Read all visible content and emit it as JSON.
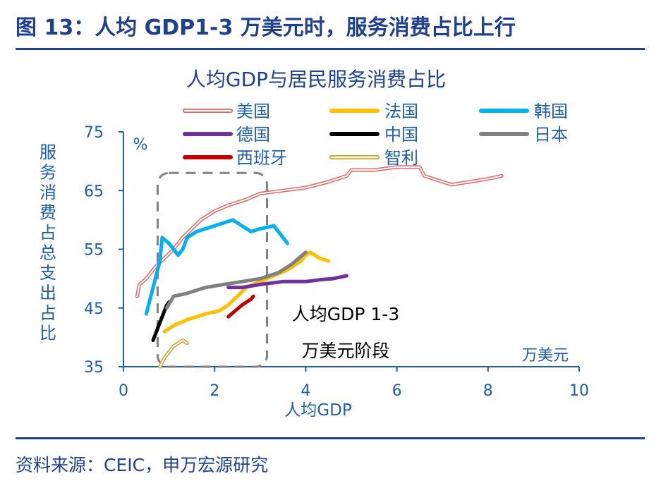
{
  "figure_title": "图 13：人均 GDP1-3 万美元时，服务消费占比上行",
  "source": "资料来源：CEIC，申万宏源研究",
  "colors": {
    "brand_blue": "#1f3f8f",
    "axis_text": "#1f5fa8"
  },
  "chart_data": {
    "type": "line",
    "title": "人均GDP与居民服务消费占比",
    "xlabel": "人均GDP",
    "ylabel": "服务消费占总支出占比",
    "x_unit": "万美元",
    "y_unit": "%",
    "xlim": [
      0,
      10
    ],
    "ylim": [
      35,
      75
    ],
    "xticks": [
      0,
      2,
      4,
      6,
      8,
      10
    ],
    "yticks": [
      35,
      45,
      55,
      65,
      75
    ],
    "grid": false,
    "legend_position": "top",
    "annotation": {
      "box_x": [
        0.75,
        3.15
      ],
      "box_y": [
        35,
        68
      ],
      "line1": "人均GDP 1-3",
      "line2": "万美元阶段"
    },
    "series": [
      {
        "name": "美国",
        "color": "#e06666",
        "style": "double",
        "points": [
          [
            0.3,
            47
          ],
          [
            0.35,
            49
          ],
          [
            0.5,
            50
          ],
          [
            0.7,
            52
          ],
          [
            0.9,
            53.5
          ],
          [
            1.1,
            55
          ],
          [
            1.3,
            57
          ],
          [
            1.5,
            58.5
          ],
          [
            1.7,
            60
          ],
          [
            2.0,
            61.5
          ],
          [
            2.3,
            62.5
          ],
          [
            2.7,
            63.5
          ],
          [
            3.0,
            64.5
          ],
          [
            3.5,
            65
          ],
          [
            4.0,
            65.5
          ],
          [
            4.5,
            66.5
          ],
          [
            4.9,
            67.5
          ],
          [
            5.0,
            68.5
          ],
          [
            5.5,
            68.5
          ],
          [
            6.0,
            69
          ],
          [
            6.5,
            69
          ],
          [
            6.6,
            67.5
          ],
          [
            7.0,
            66.5
          ],
          [
            7.2,
            66
          ],
          [
            7.6,
            66.5
          ],
          [
            8.0,
            67
          ],
          [
            8.3,
            67.5
          ]
        ]
      },
      {
        "name": "法国",
        "color": "#ffc000",
        "style": "solid",
        "points": [
          [
            0.9,
            41
          ],
          [
            1.1,
            42
          ],
          [
            1.4,
            43
          ],
          [
            1.8,
            44
          ],
          [
            2.1,
            44.5
          ],
          [
            2.3,
            45.5
          ],
          [
            2.5,
            47
          ],
          [
            2.7,
            48.5
          ],
          [
            3.0,
            49.5
          ],
          [
            3.3,
            50.5
          ],
          [
            3.6,
            51.5
          ],
          [
            3.9,
            53
          ],
          [
            4.0,
            54
          ],
          [
            4.1,
            54.5
          ],
          [
            4.3,
            53.5
          ],
          [
            4.5,
            53
          ]
        ]
      },
      {
        "name": "韩国",
        "color": "#00b0f0",
        "style": "solid",
        "points": [
          [
            0.5,
            44
          ],
          [
            0.6,
            47
          ],
          [
            0.7,
            50
          ],
          [
            0.8,
            53
          ],
          [
            0.85,
            57
          ],
          [
            1.0,
            56
          ],
          [
            1.2,
            54
          ],
          [
            1.3,
            55
          ],
          [
            1.4,
            57
          ],
          [
            1.6,
            58
          ],
          [
            1.8,
            58.5
          ],
          [
            2.0,
            59
          ],
          [
            2.2,
            59.5
          ],
          [
            2.4,
            60
          ],
          [
            2.6,
            59
          ],
          [
            2.8,
            58
          ],
          [
            3.0,
            58.5
          ],
          [
            3.3,
            59
          ],
          [
            3.5,
            57
          ],
          [
            3.6,
            56
          ]
        ]
      },
      {
        "name": "德国",
        "color": "#7030a0",
        "style": "solid",
        "points": [
          [
            2.3,
            48.5
          ],
          [
            2.6,
            48.5
          ],
          [
            3.0,
            49
          ],
          [
            3.5,
            49.5
          ],
          [
            4.0,
            49.5
          ],
          [
            4.3,
            49.8
          ],
          [
            4.6,
            50
          ],
          [
            4.9,
            50.5
          ]
        ]
      },
      {
        "name": "中国",
        "color": "#000000",
        "style": "solid",
        "points": [
          [
            0.65,
            39.5
          ],
          [
            0.75,
            41.5
          ],
          [
            0.85,
            43.5
          ],
          [
            0.95,
            45.5
          ],
          [
            1.0,
            46
          ]
        ]
      },
      {
        "name": "日本",
        "color": "#808080",
        "style": "solid",
        "points": [
          [
            0.95,
            45
          ],
          [
            1.1,
            47
          ],
          [
            1.4,
            47.5
          ],
          [
            1.8,
            48.5
          ],
          [
            2.2,
            49
          ],
          [
            2.6,
            49.5
          ],
          [
            3.0,
            50
          ],
          [
            3.4,
            51
          ],
          [
            3.7,
            52.5
          ],
          [
            4.0,
            54.5
          ]
        ]
      },
      {
        "name": "西班牙",
        "color": "#c00000",
        "style": "solid",
        "points": [
          [
            2.3,
            43.5
          ],
          [
            2.45,
            44.5
          ],
          [
            2.6,
            45.5
          ],
          [
            2.7,
            46
          ],
          [
            2.8,
            46.5
          ],
          [
            2.85,
            47
          ]
        ]
      },
      {
        "name": "智利",
        "color": "#c9a227",
        "style": "double",
        "points": [
          [
            0.8,
            35
          ],
          [
            0.9,
            36.5
          ],
          [
            1.0,
            37.5
          ],
          [
            1.1,
            38.5
          ],
          [
            1.2,
            39
          ],
          [
            1.3,
            39.5
          ],
          [
            1.4,
            39
          ]
        ]
      }
    ]
  }
}
